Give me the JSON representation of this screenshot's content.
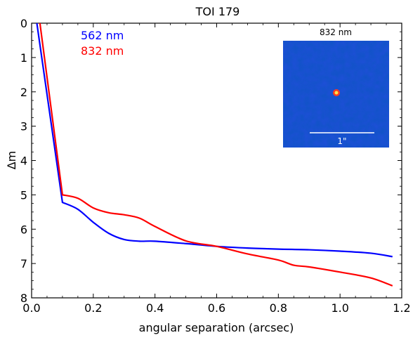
{
  "chart_data": {
    "type": "line",
    "title": "TOI 179",
    "xlabel": "angular separation (arcsec)",
    "ylabel": "Δm",
    "xlim": [
      0.0,
      1.2
    ],
    "ylim": [
      8,
      0
    ],
    "y_inverted": true,
    "x_ticks": [
      0.0,
      0.2,
      0.4,
      0.6,
      0.8,
      1.0,
      1.2
    ],
    "x_tick_labels": [
      "0.0",
      "0.2",
      "0.4",
      "0.6",
      "0.8",
      "1.0",
      "1.2"
    ],
    "y_ticks": [
      0,
      1,
      2,
      3,
      4,
      5,
      6,
      7,
      8
    ],
    "y_tick_labels": [
      "0",
      "1",
      "2",
      "3",
      "4",
      "5",
      "6",
      "7",
      "8"
    ],
    "grid": false,
    "legend_position": "top-left",
    "series": [
      {
        "name": "562 nm",
        "color": "#0000ff",
        "x": [
          0.017,
          0.1,
          0.15,
          0.2,
          0.25,
          0.3,
          0.35,
          0.4,
          0.5,
          0.6,
          0.7,
          0.8,
          0.9,
          1.0,
          1.1,
          1.17
        ],
        "y": [
          0.0,
          5.22,
          5.42,
          5.8,
          6.12,
          6.3,
          6.35,
          6.35,
          6.42,
          6.5,
          6.55,
          6.58,
          6.6,
          6.64,
          6.7,
          6.8
        ]
      },
      {
        "name": "832 nm",
        "color": "#ff0000",
        "x": [
          0.027,
          0.1,
          0.15,
          0.2,
          0.25,
          0.3,
          0.35,
          0.4,
          0.5,
          0.6,
          0.7,
          0.8,
          0.85,
          0.9,
          1.0,
          1.1,
          1.17
        ],
        "y": [
          0.0,
          5.0,
          5.1,
          5.38,
          5.52,
          5.58,
          5.68,
          5.92,
          6.34,
          6.5,
          6.72,
          6.9,
          7.05,
          7.1,
          7.25,
          7.42,
          7.65
        ]
      }
    ],
    "inset": {
      "title": "832 nm",
      "scale_bar_label": "1\"",
      "background_color": "#1f4fd8"
    }
  }
}
